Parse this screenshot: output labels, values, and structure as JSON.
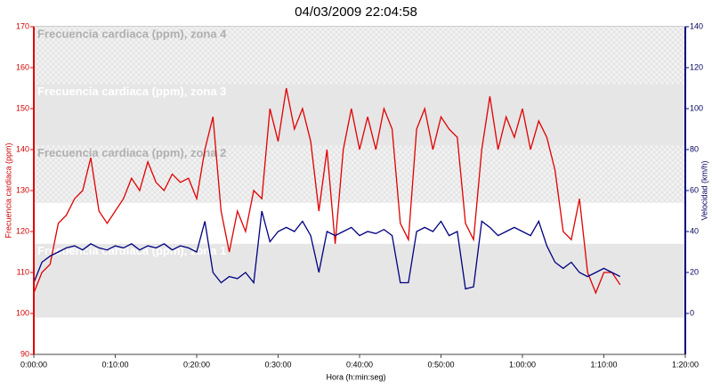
{
  "chart_data": {
    "type": "line",
    "title": "04/03/2009 22:04:58",
    "xlabel": "Hora (h:min:seg)",
    "ylabel": "Frecuencia cardiaca (ppm)",
    "y2label": "Velocidad (km/h)",
    "xlim": [
      0,
      80
    ],
    "xticks": [
      {
        "value": 0,
        "label": "0:00:00"
      },
      {
        "value": 10,
        "label": "0:10:00"
      },
      {
        "value": 20,
        "label": "0:20:00"
      },
      {
        "value": 30,
        "label": "0:30:00"
      },
      {
        "value": 40,
        "label": "0:40:00"
      },
      {
        "value": 50,
        "label": "0:50:00"
      },
      {
        "value": 60,
        "label": "1:00:00"
      },
      {
        "value": 70,
        "label": "1:10:00"
      },
      {
        "value": 80,
        "label": "1:20:00"
      }
    ],
    "ylim": [
      90,
      170
    ],
    "yticks": [
      90,
      100,
      110,
      120,
      130,
      140,
      150,
      160,
      170
    ],
    "y2lim": [
      -20,
      140
    ],
    "y2ticks": [
      0,
      20,
      40,
      60,
      80,
      100,
      120,
      140
    ],
    "zones": [
      {
        "label": "Frecuencia cardiaca (ppm), zona 4",
        "from": 156,
        "to": 170,
        "hatch": true
      },
      {
        "label": "Frecuencia cardiaca (ppm), zona 3",
        "from": 141,
        "to": 156,
        "hatch": false
      },
      {
        "label": "Frecuencia cardiaca (ppm), zona 2",
        "from": 127,
        "to": 141,
        "hatch": true
      },
      {
        "label": "Frecuencia cardiaca (ppm), zona 1",
        "from": 99,
        "to": 117,
        "hatch": false
      }
    ],
    "x": [
      0,
      1,
      2,
      3,
      4,
      5,
      6,
      7,
      8,
      9,
      10,
      11,
      12,
      13,
      14,
      15,
      16,
      17,
      18,
      19,
      20,
      21,
      22,
      23,
      24,
      25,
      26,
      27,
      28,
      29,
      30,
      31,
      32,
      33,
      34,
      35,
      36,
      37,
      38,
      39,
      40,
      41,
      42,
      43,
      44,
      45,
      46,
      47,
      48,
      49,
      50,
      51,
      52,
      53,
      54,
      55,
      56,
      57,
      58,
      59,
      60,
      61,
      62,
      63,
      64,
      65,
      66,
      67,
      68,
      69,
      70,
      71,
      72
    ],
    "series": [
      {
        "color": "#e00000",
        "axis": "y",
        "values": [
          105,
          110,
          112,
          122,
          124,
          128,
          130,
          138,
          125,
          122,
          125,
          128,
          133,
          130,
          137,
          132,
          130,
          134,
          132,
          133,
          128,
          140,
          148,
          125,
          115,
          125,
          120,
          130,
          128,
          150,
          142,
          155,
          145,
          150,
          142,
          125,
          140,
          117,
          140,
          150,
          140,
          148,
          140,
          150,
          145,
          122,
          118,
          145,
          150,
          140,
          148,
          145,
          143,
          122,
          118,
          140,
          153,
          140,
          148,
          143,
          150,
          140,
          147,
          143,
          135,
          120,
          118,
          128,
          110,
          105,
          110,
          110,
          107
        ]
      },
      {
        "color": "#000080",
        "axis": "y2",
        "values": [
          15,
          25,
          28,
          30,
          32,
          33,
          31,
          34,
          32,
          31,
          33,
          32,
          34,
          31,
          33,
          32,
          34,
          31,
          33,
          32,
          30,
          45,
          20,
          15,
          18,
          17,
          20,
          15,
          50,
          35,
          40,
          42,
          40,
          45,
          38,
          20,
          40,
          38,
          40,
          42,
          38,
          40,
          39,
          41,
          38,
          15,
          15,
          40,
          42,
          40,
          45,
          38,
          40,
          12,
          13,
          45,
          42,
          38,
          40,
          42,
          40,
          38,
          45,
          33,
          25,
          22,
          25,
          20,
          18,
          20,
          22,
          20,
          18
        ]
      }
    ]
  }
}
